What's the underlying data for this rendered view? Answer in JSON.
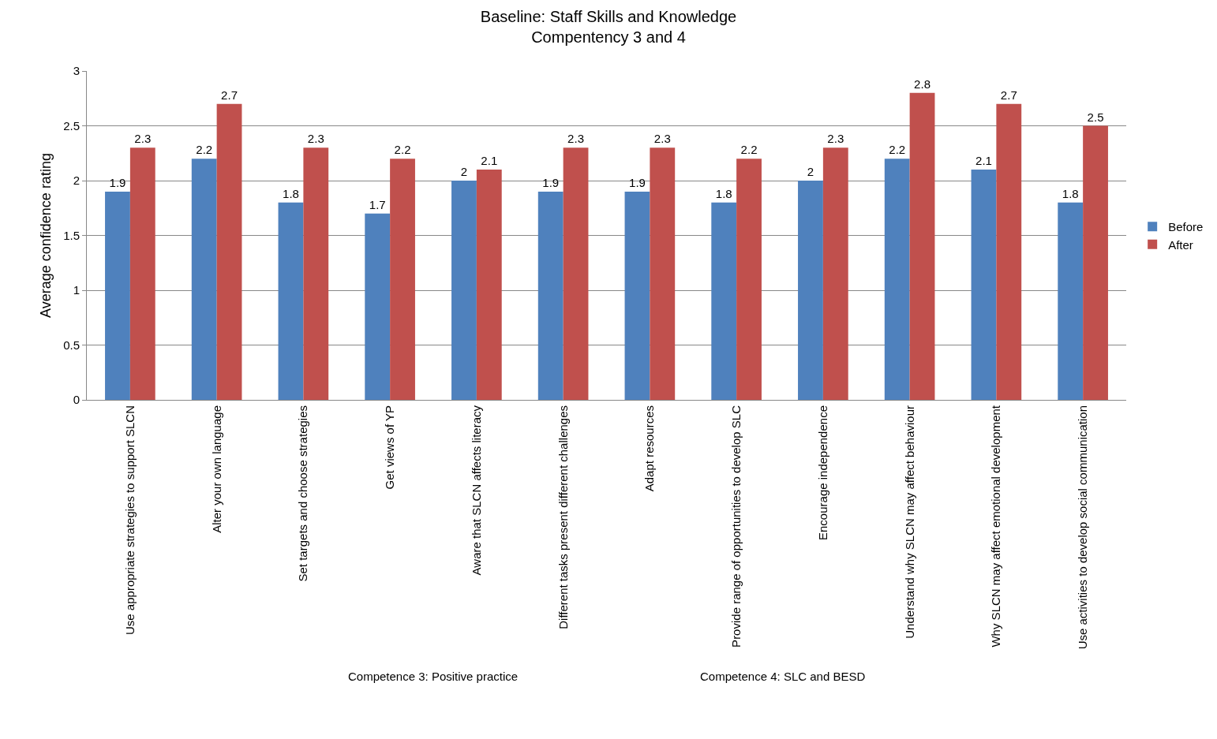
{
  "chart_data": {
    "type": "bar",
    "title": "Baseline: Staff Skills and Knowledge\nCompentency 3 and 4",
    "ylabel": "Average confidence rating",
    "categories": [
      "Use appropriate strategies to support SLCN",
      "Alter your own language",
      "Set targets and choose strategies",
      "Get views of YP",
      "Aware that SLCN affects literacy",
      "Different tasks present different challenges",
      "Adapt resources",
      "Provide range of opportunities to develop SLC",
      "Encourage independence",
      "Understand why SLCN may affect behaviour",
      "Why SLCN may affect emotional development",
      "Use activities to develop social communication"
    ],
    "series": [
      {
        "name": "Before",
        "color": "#4f81bd",
        "values": [
          1.9,
          2.2,
          1.8,
          1.7,
          2,
          1.9,
          1.9,
          1.8,
          2,
          2.2,
          2.1,
          1.8
        ]
      },
      {
        "name": "After",
        "color": "#c0504d",
        "values": [
          2.3,
          2.7,
          2.3,
          2.2,
          2.1,
          2.3,
          2.3,
          2.2,
          2.3,
          2.8,
          2.7,
          2.5
        ]
      }
    ],
    "ylim": [
      0,
      3
    ],
    "yticks": [
      0,
      0.5,
      1,
      1.5,
      2,
      2.5,
      3
    ],
    "grid": "y",
    "legend": "right",
    "data_labels": true,
    "annotations": [
      "Competence 3: Positive practice",
      "Competence 4: SLC and BESD"
    ]
  }
}
